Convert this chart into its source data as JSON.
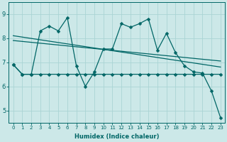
{
  "background_color": "#cce8e8",
  "grid_color": "#aad4d4",
  "line_color": "#006666",
  "xlabel": "Humidex (Indice chaleur)",
  "xlim": [
    -0.5,
    23.5
  ],
  "ylim": [
    4.5,
    9.5
  ],
  "yticks": [
    5,
    6,
    7,
    8,
    9
  ],
  "xticks": [
    0,
    1,
    2,
    3,
    4,
    5,
    6,
    7,
    8,
    9,
    10,
    11,
    12,
    13,
    14,
    15,
    16,
    17,
    18,
    19,
    20,
    21,
    22,
    23
  ],
  "zigzag_y": [
    6.9,
    6.5,
    6.5,
    8.3,
    8.5,
    8.3,
    8.85,
    6.85,
    6.0,
    6.6,
    7.55,
    7.55,
    8.6,
    8.45,
    8.6,
    8.8,
    7.5,
    8.2,
    7.4,
    6.85,
    6.6,
    6.55,
    5.8,
    4.7
  ],
  "flat_y": [
    6.9,
    6.5,
    6.5,
    6.5,
    6.5,
    6.5,
    6.5,
    6.5,
    6.5,
    6.5,
    6.5,
    6.5,
    6.5,
    6.5,
    6.5,
    6.5,
    6.5,
    6.5,
    6.5,
    6.5,
    6.5,
    6.5,
    6.5,
    6.5
  ],
  "trend1_x": [
    0,
    23
  ],
  "trend1_y": [
    8.1,
    6.8
  ],
  "trend2_x": [
    0,
    23
  ],
  "trend2_y": [
    7.9,
    7.05
  ],
  "xlabel_fontsize": 6,
  "tick_fontsize_x": 5,
  "tick_fontsize_y": 6,
  "linewidth": 0.9,
  "markersize": 2.5
}
